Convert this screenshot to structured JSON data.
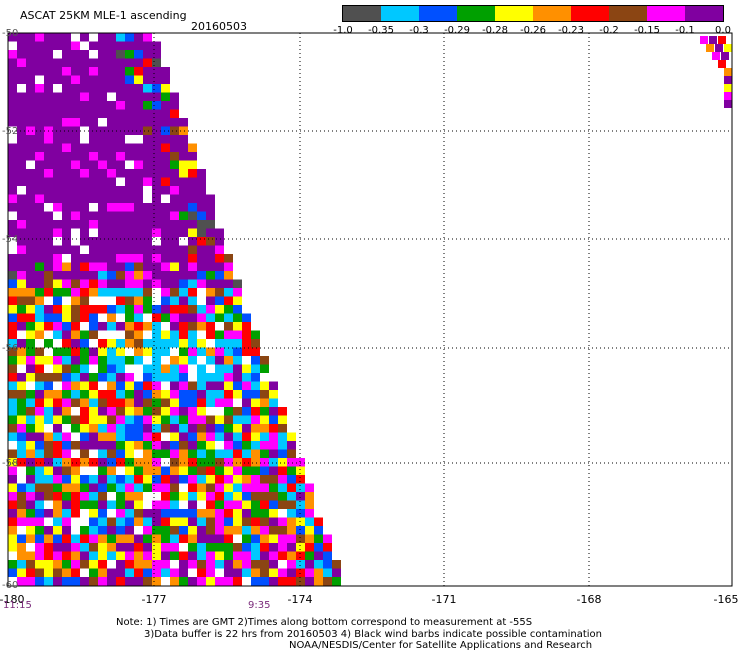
{
  "header": {
    "title": "ASCAT 25KM MLE-1 ascending",
    "date": "20160503"
  },
  "colorbar": {
    "colors": [
      "#505050",
      "#00c8ff",
      "#0050ff",
      "#00a000",
      "#ffff00",
      "#ff9000",
      "#ff0000",
      "#8b4513",
      "#ff00ff",
      "#8000a0"
    ],
    "labels": [
      "-1.0",
      "-0.35",
      "-0.3",
      "-0.29",
      "-0.28",
      "-0.26",
      "-0.23",
      "-0.2",
      "-0.15",
      "-0.1",
      "0.0"
    ]
  },
  "map": {
    "x_ticks": [
      "-180",
      "-177",
      "-174",
      "-171",
      "-168",
      "-165"
    ],
    "y_ticks": [
      "-50",
      "-52",
      "-54",
      "-56",
      "-58",
      "-60"
    ],
    "time_left": "11:15",
    "time_mid": "9:35"
  },
  "footer": {
    "note1": "Note: 1) Times are GMT 2)Times along bottom correspond to measurement at -55S",
    "note2": "3)Data buffer is 22 hrs from 20160503 4) Black wind barbs indicate possible contamination",
    "note3": "NOAA/NESDIS/Center for Satellite Applications and Research"
  }
}
